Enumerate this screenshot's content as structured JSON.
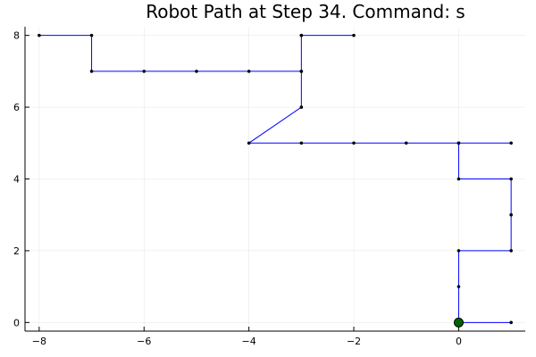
{
  "chart_data": {
    "type": "line",
    "title": "Robot Path at Step 34. Command: s",
    "xlabel": "",
    "ylabel": "",
    "xlim": [
      -8.27,
      1.27
    ],
    "ylim": [
      -0.24,
      8.24
    ],
    "x_ticks": [
      -8,
      -6,
      -4,
      -2,
      0
    ],
    "y_ticks": [
      0,
      2,
      4,
      6,
      8
    ],
    "x_tick_labels": [
      "−8",
      "−6",
      "−4",
      "−2",
      "0"
    ],
    "y_tick_labels": [
      "0",
      "2",
      "4",
      "6",
      "8"
    ],
    "grid": true,
    "legend": "none",
    "line_color": "#0000ff",
    "marker_color": "#000000",
    "current_position_color": "#006400",
    "series": [
      {
        "x": [
          -8,
          -7,
          -7,
          -6,
          -5,
          -4,
          -3,
          -3,
          -2,
          -3,
          -3,
          -3,
          -4,
          -3,
          -2,
          -1,
          0,
          1,
          0,
          0,
          1,
          1,
          1,
          0,
          0,
          0,
          1
        ],
        "y": [
          8,
          8,
          7,
          7,
          7,
          7,
          7,
          8,
          8,
          8,
          7,
          6,
          5,
          5,
          5,
          5,
          5,
          5,
          5,
          4,
          4,
          3,
          2,
          2,
          1,
          0,
          0
        ]
      }
    ],
    "current_position": {
      "x": 0,
      "y": 0
    }
  }
}
